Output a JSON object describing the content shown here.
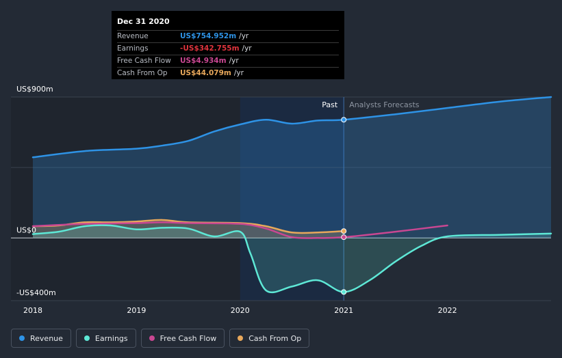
{
  "tooltip": {
    "date": "Dec 31 2020",
    "rows": [
      {
        "label": "Revenue",
        "value": "US$754.952m",
        "unit": "/yr",
        "color": "#2e93e6"
      },
      {
        "label": "Earnings",
        "value": "-US$342.755m",
        "unit": "/yr",
        "color": "#e0343d"
      },
      {
        "label": "Free Cash Flow",
        "value": "US$4.934m",
        "unit": "/yr",
        "color": "#c94792"
      },
      {
        "label": "Cash From Op",
        "value": "US$44.079m",
        "unit": "/yr",
        "color": "#e8a85b"
      }
    ]
  },
  "divider": {
    "past_label": "Past",
    "forecast_label": "Analysts Forecasts"
  },
  "legend": [
    {
      "label": "Revenue",
      "color": "#2e93e6"
    },
    {
      "label": "Earnings",
      "color": "#5ee8d6"
    },
    {
      "label": "Free Cash Flow",
      "color": "#c94792"
    },
    {
      "label": "Cash From Op",
      "color": "#e8a85b"
    }
  ],
  "chart_data": {
    "type": "line",
    "y_tick_labels": [
      "US$900m",
      "US$0",
      "-US$400m"
    ],
    "x_tick_labels": [
      "2018",
      "2019",
      "2020",
      "2021",
      "2022"
    ],
    "ylim": [
      -400,
      900
    ],
    "xlim": [
      2018,
      2023
    ],
    "past_until": 2021,
    "series": [
      {
        "name": "Revenue",
        "color": "#2e93e6",
        "fill": true,
        "x": [
          2018,
          2018.5,
          2019,
          2019.25,
          2019.5,
          2019.75,
          2020,
          2020.25,
          2020.5,
          2020.75,
          2021,
          2021.5,
          2022,
          2022.5,
          2023
        ],
        "y": [
          515,
          555,
          570,
          590,
          620,
          680,
          725,
          755,
          730,
          750,
          755,
          790,
          830,
          870,
          900
        ]
      },
      {
        "name": "Earnings",
        "color": "#5ee8d6",
        "fill": true,
        "x": [
          2018,
          2018.25,
          2018.5,
          2018.75,
          2019,
          2019.25,
          2019.5,
          2019.75,
          2020,
          2020.1,
          2020.25,
          2020.5,
          2020.75,
          2021,
          2021.25,
          2021.5,
          2021.75,
          2022,
          2022.5,
          2023
        ],
        "y": [
          25,
          40,
          75,
          80,
          55,
          65,
          60,
          10,
          40,
          -100,
          -335,
          -310,
          -270,
          -345,
          -270,
          -150,
          -50,
          10,
          20,
          28
        ]
      },
      {
        "name": "Free Cash Flow",
        "color": "#c94792",
        "fill": false,
        "x": [
          2018,
          2018.5,
          2019,
          2019.25,
          2019.5,
          2020,
          2020.25,
          2020.5,
          2020.75,
          2021,
          2021.5,
          2022
        ],
        "y": [
          75,
          90,
          95,
          100,
          95,
          90,
          60,
          5,
          0,
          5,
          40,
          80
        ]
      },
      {
        "name": "Cash From Op",
        "color": "#e8a85b",
        "fill": true,
        "x": [
          2018,
          2018.25,
          2018.5,
          2018.75,
          2019,
          2019.25,
          2019.5,
          2020,
          2020.25,
          2020.5,
          2020.75,
          2021
        ],
        "y": [
          75,
          80,
          100,
          100,
          105,
          115,
          100,
          95,
          75,
          35,
          35,
          44
        ]
      }
    ]
  }
}
